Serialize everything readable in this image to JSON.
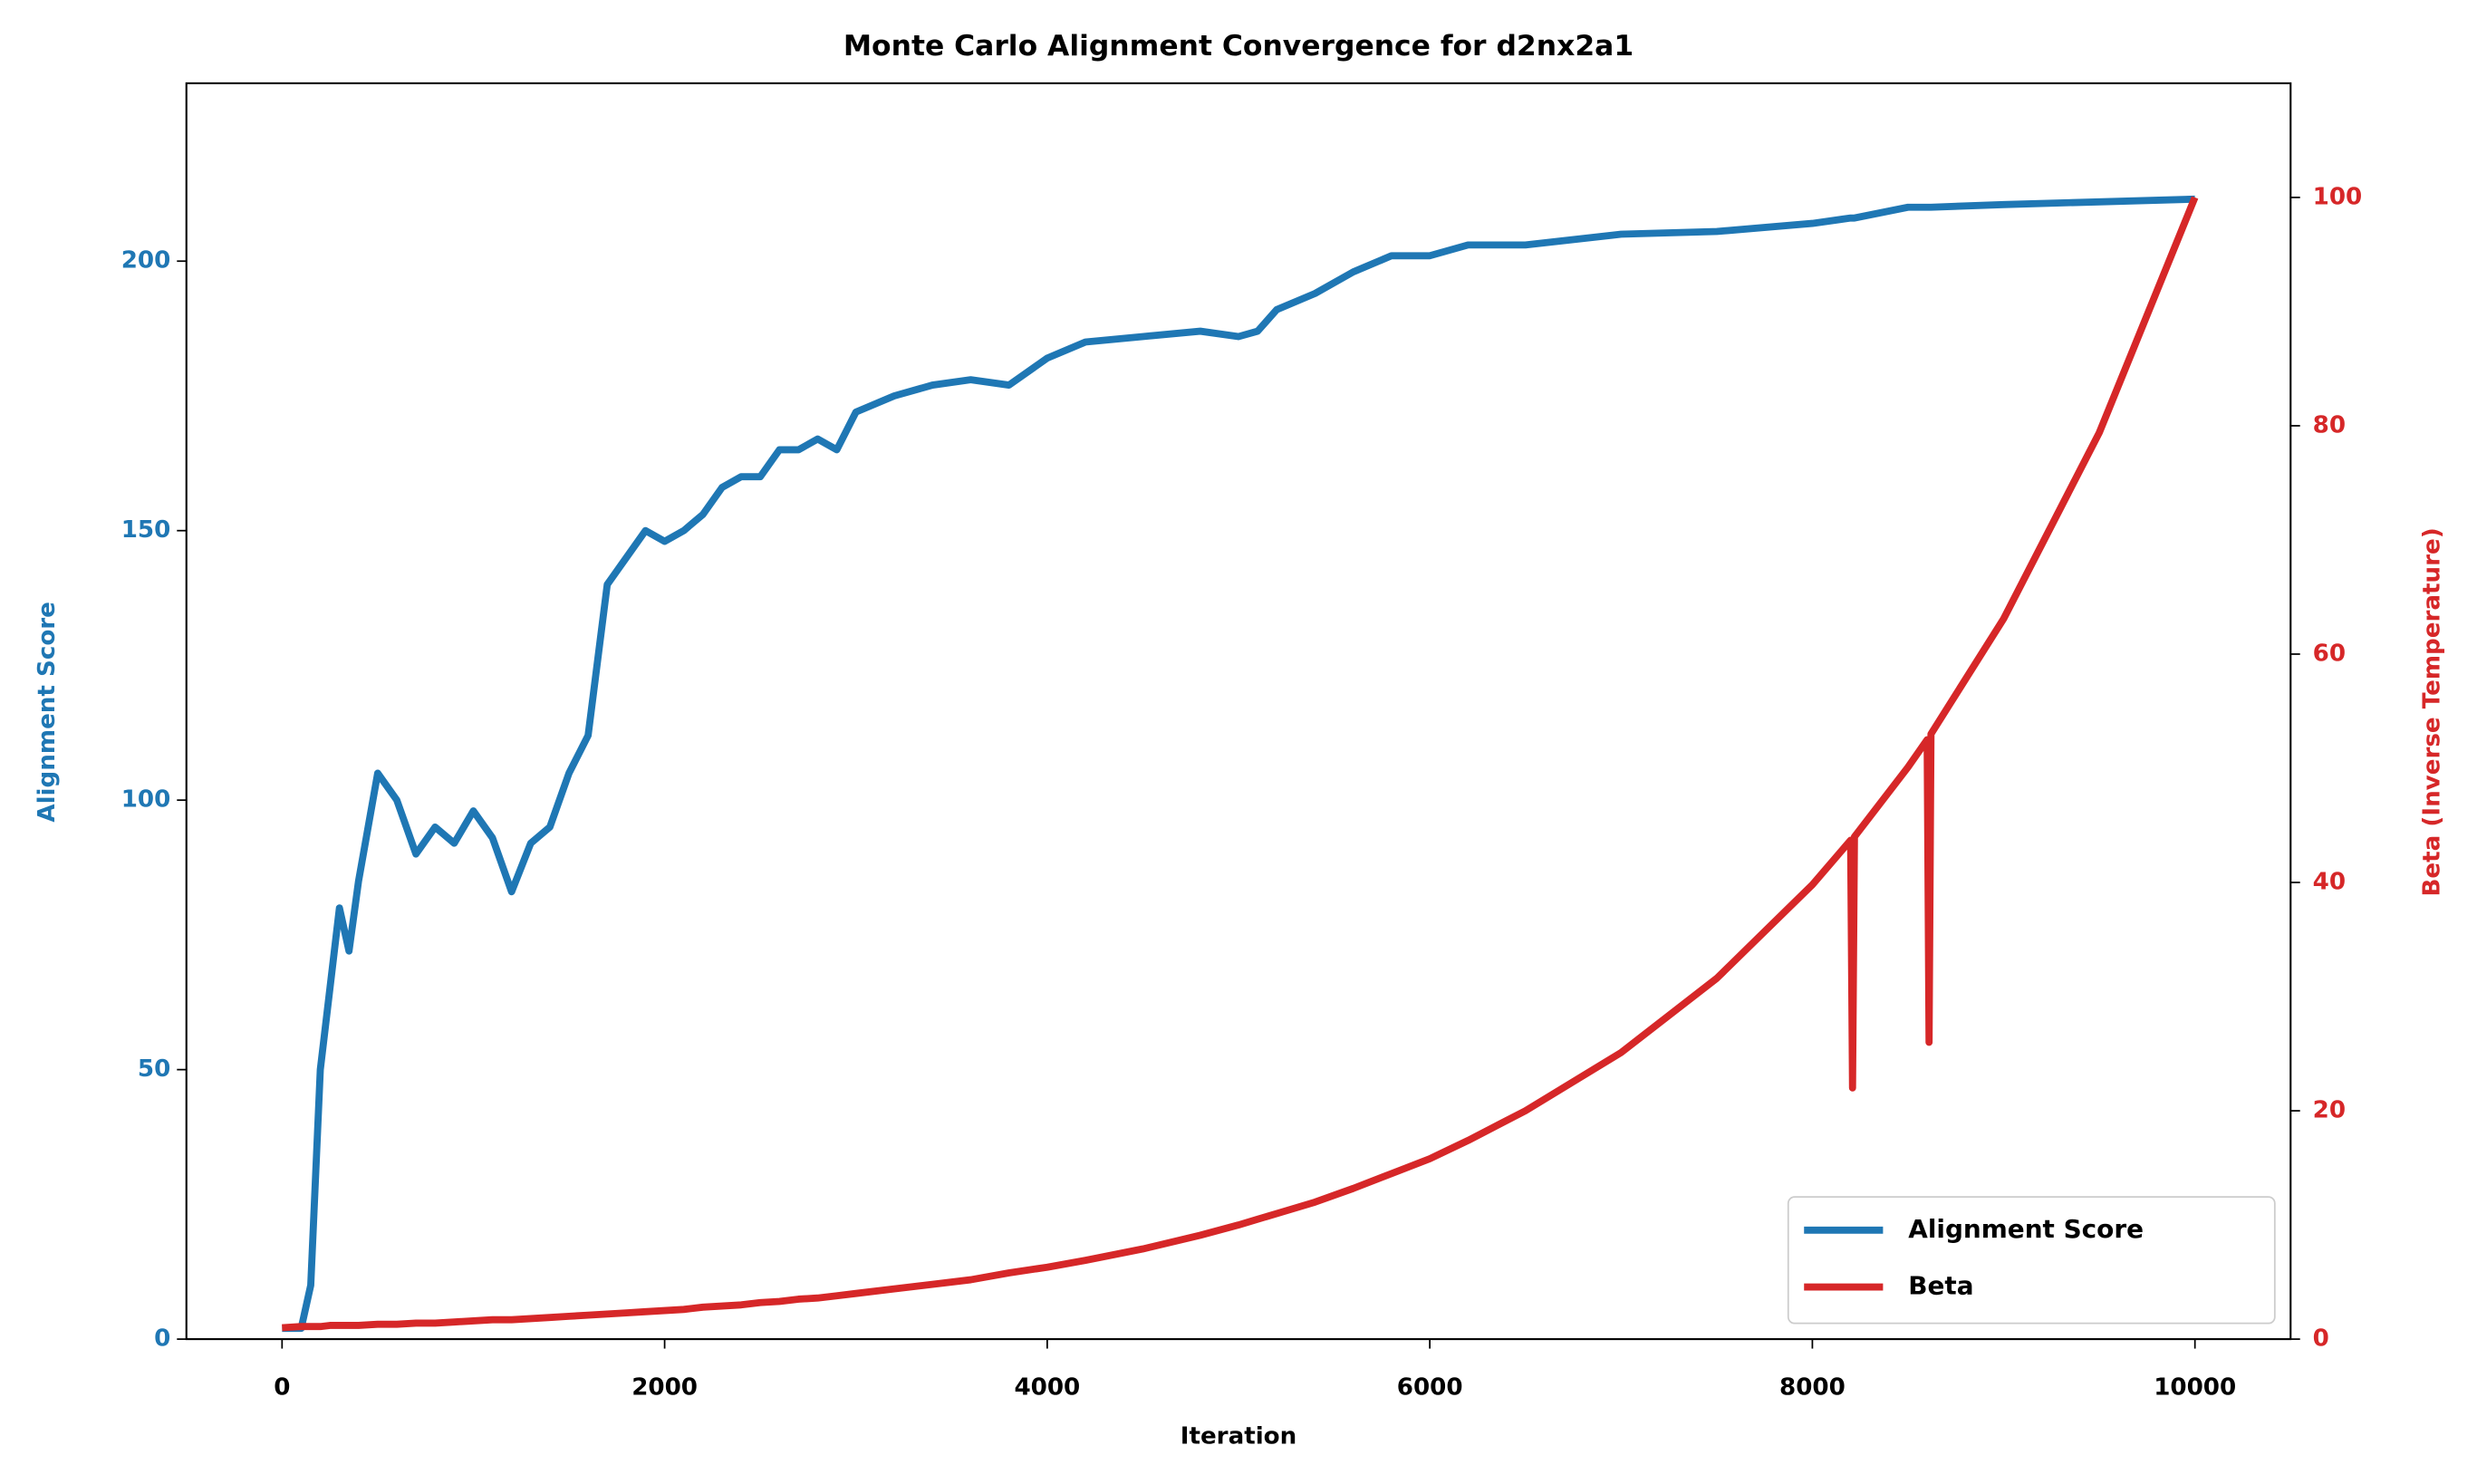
{
  "chart_data": {
    "type": "line",
    "title": "Monte Carlo Alignment Convergence for d2nx2a1",
    "x_label": "Iteration",
    "y_label": "Alignment Score",
    "y2_label": "Beta (Inverse Temperature)",
    "x": [
      0,
      100,
      150,
      200,
      250,
      300,
      350,
      400,
      500,
      600,
      700,
      800,
      900,
      1000,
      1100,
      1200,
      1300,
      1400,
      1500,
      1600,
      1700,
      1800,
      1900,
      2000,
      2100,
      2200,
      2300,
      2400,
      2500,
      2600,
      2700,
      2800,
      2900,
      3000,
      3200,
      3400,
      3600,
      3800,
      4000,
      4200,
      4500,
      4800,
      5000,
      5100,
      5200,
      5400,
      5600,
      5800,
      6000,
      6200,
      6500,
      7000,
      7500,
      8000,
      8200,
      8210,
      8220,
      8500,
      8600,
      8610,
      8620,
      9000,
      9500,
      10000
    ],
    "series": [
      {
        "name": "Alignment Score",
        "color": "#1f77b4",
        "values": [
          2,
          2,
          10,
          50,
          65,
          80,
          72,
          85,
          105,
          100,
          90,
          95,
          92,
          98,
          93,
          83,
          92,
          95,
          105,
          112,
          140,
          145,
          150,
          148,
          150,
          153,
          158,
          160,
          160,
          165,
          165,
          167,
          165,
          172,
          175,
          177,
          178,
          177,
          182,
          185,
          186,
          187,
          186,
          187,
          191,
          194,
          198,
          201,
          201,
          203,
          203,
          205,
          205.5,
          207,
          208,
          208,
          208,
          210,
          210,
          210,
          210,
          210.5,
          211,
          211.5
        ]
      },
      {
        "name": "Beta",
        "color": "#d62728",
        "axis": "y2",
        "values": [
          1,
          1.1,
          1.1,
          1.1,
          1.2,
          1.2,
          1.2,
          1.2,
          1.3,
          1.3,
          1.4,
          1.4,
          1.5,
          1.6,
          1.7,
          1.7,
          1.8,
          1.9,
          2.0,
          2.1,
          2.2,
          2.3,
          2.4,
          2.5,
          2.6,
          2.8,
          2.9,
          3.0,
          3.2,
          3.3,
          3.5,
          3.6,
          3.8,
          4.0,
          4.4,
          4.8,
          5.2,
          5.8,
          6.3,
          6.9,
          7.9,
          9.1,
          10,
          10.5,
          11.0,
          12.0,
          13.2,
          14.5,
          15.8,
          17.4,
          20.0,
          25.1,
          31.6,
          39.8,
          43.7,
          22,
          44.0,
          50.1,
          52.5,
          26,
          53.0,
          63.1,
          79.4,
          100
        ]
      }
    ],
    "xlim": [
      -500,
      10500
    ],
    "xticks": [
      0,
      2000,
      4000,
      6000,
      8000,
      10000
    ],
    "ylim": [
      0,
      233
    ],
    "yticks": [
      0,
      50,
      100,
      150,
      200
    ],
    "y2lim": [
      0,
      110
    ],
    "y2ticks": [
      0,
      20,
      40,
      60,
      80,
      100
    ],
    "legend": "lower right"
  }
}
